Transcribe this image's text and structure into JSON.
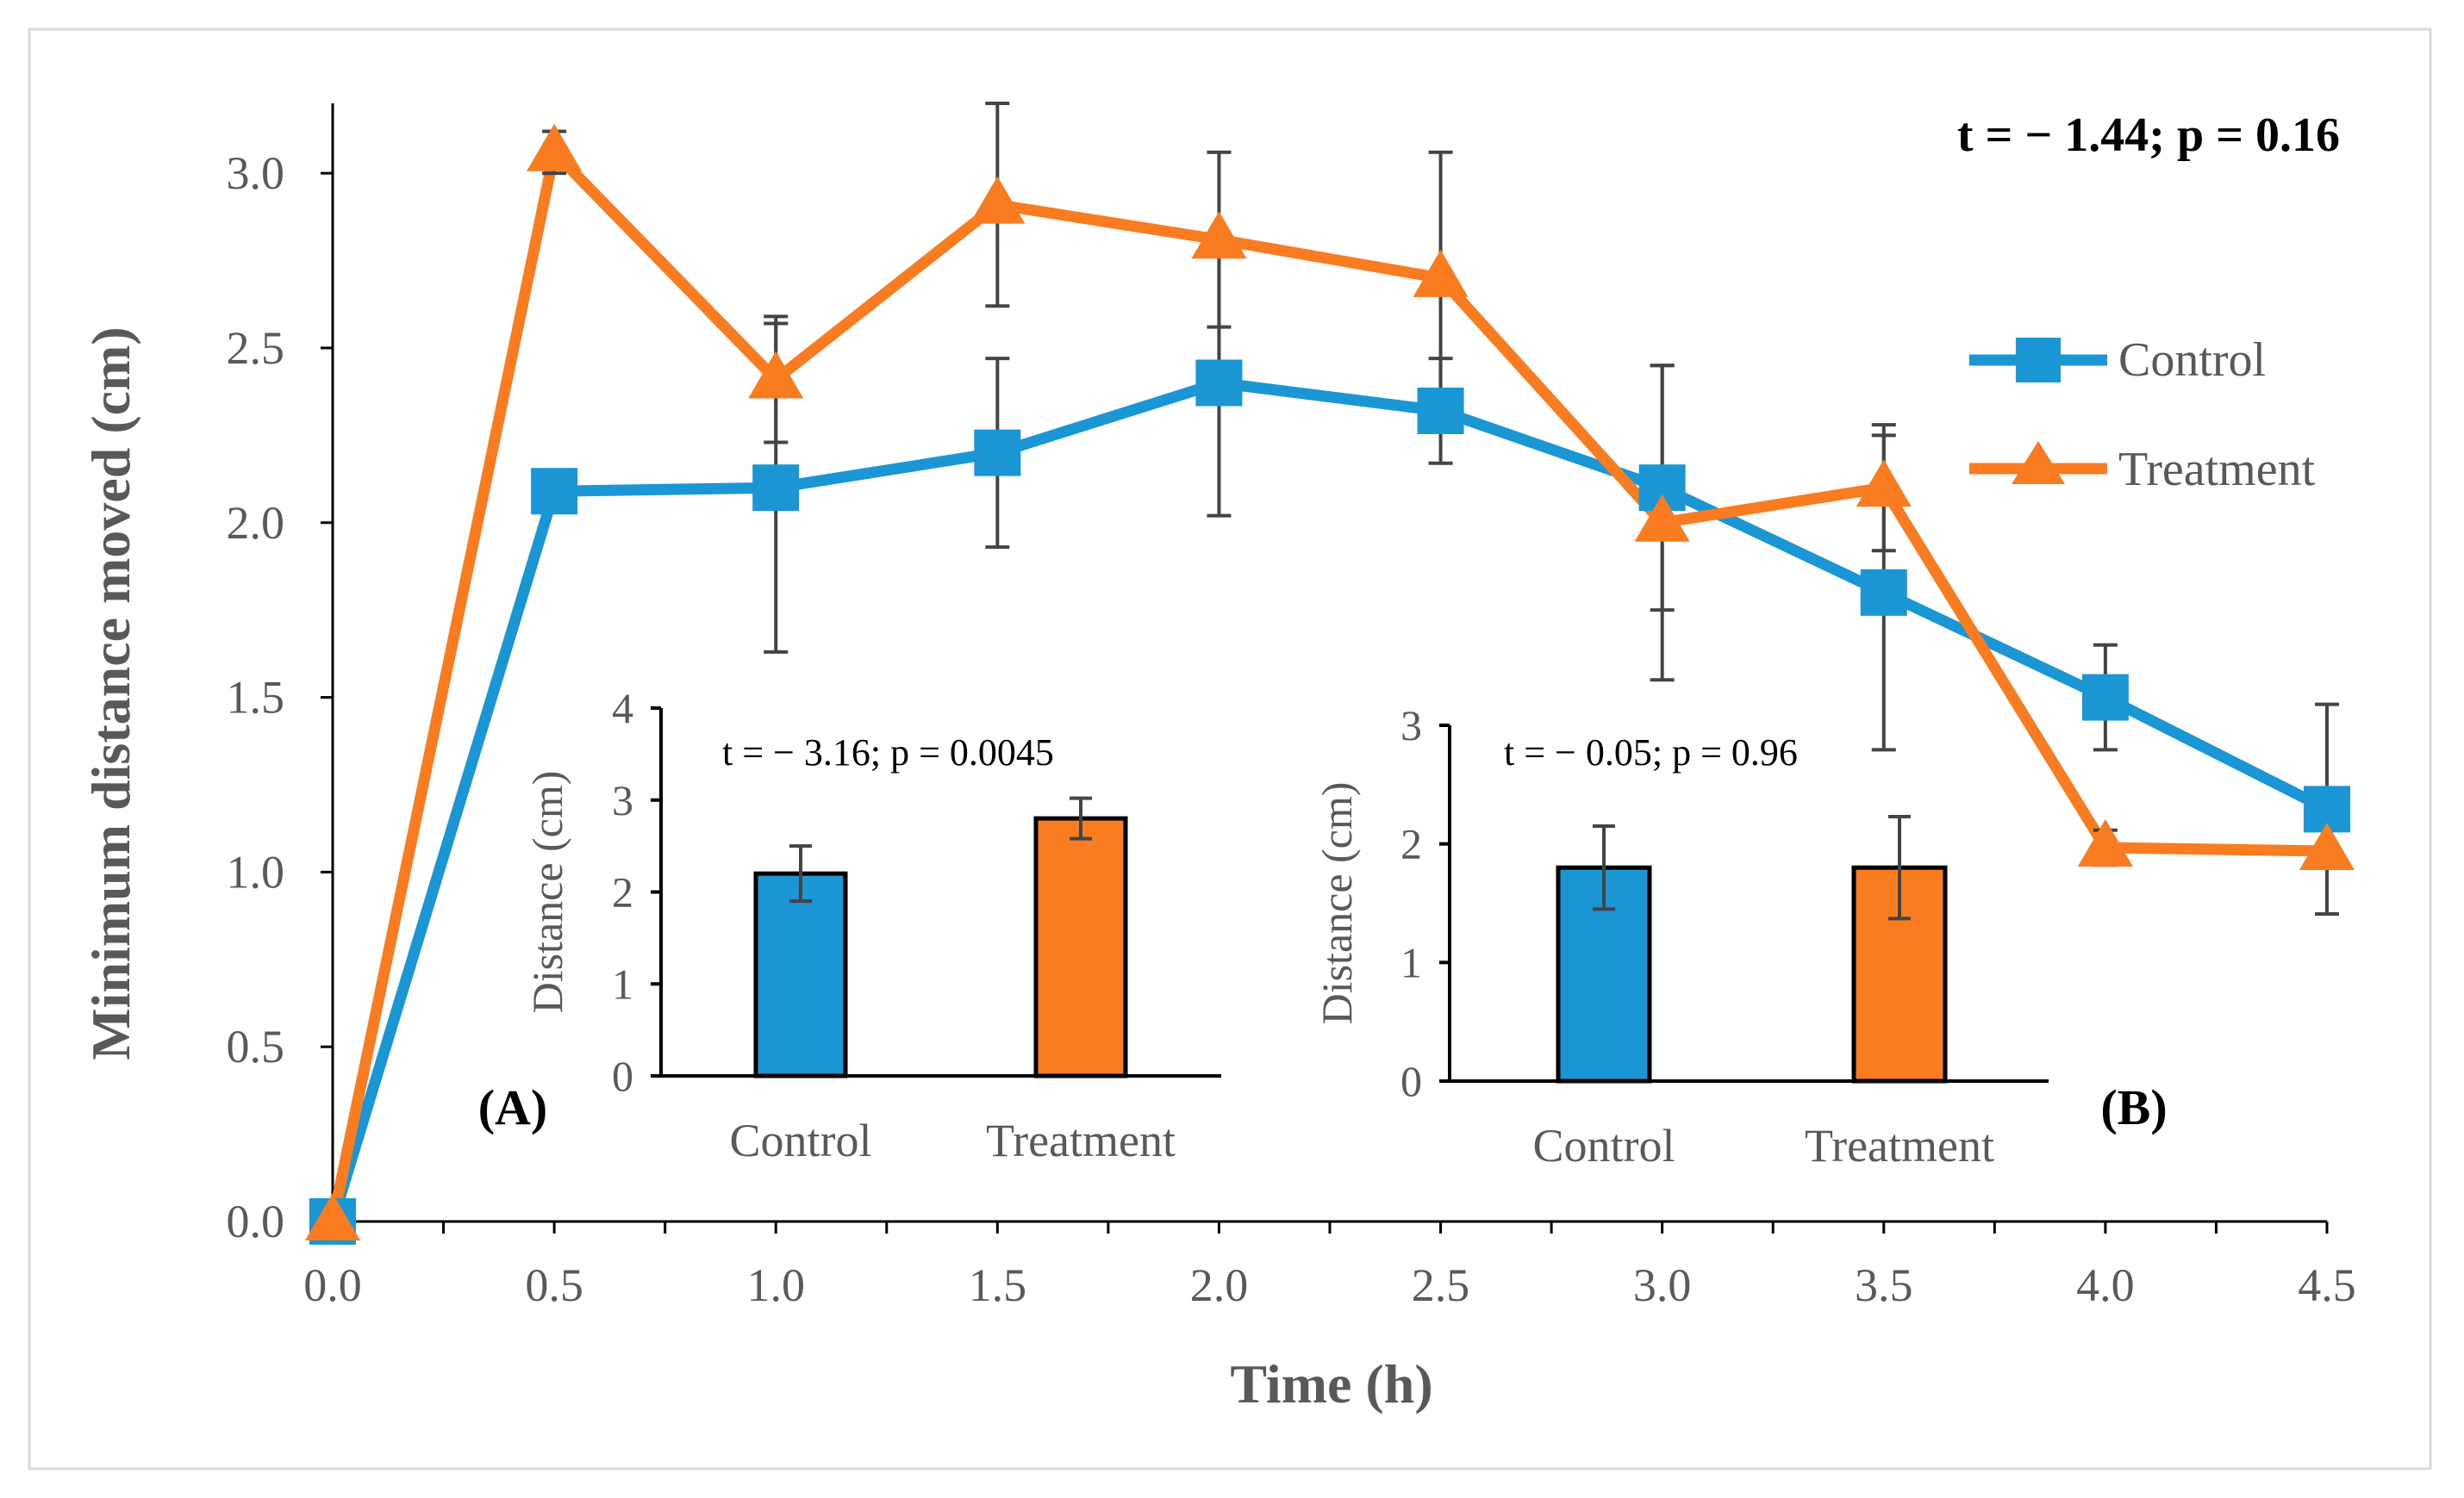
{
  "colors": {
    "control": "#1a96d4",
    "treatment": "#f97c20",
    "axis": "#000000",
    "tick_text": "#595959",
    "error_bar": "#444444",
    "frame": "#d9d9d9"
  },
  "chart_data": [
    {
      "id": "main",
      "type": "line",
      "title": "",
      "xlabel": "Time (h)",
      "ylabel": "Minimum distance moved (cm)",
      "x": [
        0.0,
        0.5,
        1.0,
        1.5,
        2.0,
        2.5,
        3.0,
        3.5,
        4.0,
        4.5
      ],
      "x_tick_labels": [
        "0.0",
        "0.5",
        "1.0",
        "1.5",
        "2.0",
        "2.5",
        "3.0",
        "3.5",
        "4.0",
        "4.5"
      ],
      "xlim": [
        0,
        4.5
      ],
      "ylim": [
        0,
        3.2
      ],
      "y_ticks": [
        0,
        0.5,
        1.0,
        1.5,
        2.0,
        2.5,
        3.0
      ],
      "y_tick_labels": [
        "0.0",
        "0.5",
        "1.0",
        "1.5",
        "2.0",
        "2.5",
        "3.0"
      ],
      "annotation": "t = − 1.44; p = 0.16",
      "legend_position": "right",
      "series": [
        {
          "name": "Control",
          "marker": "square",
          "values": [
            0.0,
            2.09,
            2.1,
            2.2,
            2.4,
            2.32,
            2.1,
            1.8,
            1.5,
            1.18
          ],
          "errors": [
            0.0,
            0.06,
            0.47,
            0.27,
            0.38,
            0.15,
            0.35,
            0.45,
            0.15,
            0.3
          ]
        },
        {
          "name": "Treatment",
          "marker": "triangle",
          "values": [
            0.0,
            3.06,
            2.41,
            2.91,
            2.81,
            2.7,
            2.0,
            2.1,
            1.07,
            1.06
          ],
          "errors": [
            0.0,
            0.06,
            0.18,
            0.29,
            0.25,
            0.36,
            0.45,
            0.18,
            0.05,
            0.0
          ]
        }
      ]
    },
    {
      "id": "inset-a",
      "type": "bar",
      "panel_label": "(A)",
      "annotation": "t = − 3.16; p = 0.0045",
      "categories": [
        "Control",
        "Treatment"
      ],
      "values": [
        2.2,
        2.8
      ],
      "errors": [
        0.3,
        0.22
      ],
      "ylabel": "Distance (cm)",
      "ylim": [
        0,
        4
      ],
      "y_ticks": [
        0,
        1,
        2,
        3,
        4
      ]
    },
    {
      "id": "inset-b",
      "type": "bar",
      "panel_label": "(B)",
      "annotation": "t = − 0.05; p = 0.96",
      "categories": [
        "Control",
        "Treatment"
      ],
      "values": [
        1.8,
        1.8
      ],
      "errors": [
        0.35,
        0.43
      ],
      "ylabel": "Distance (cm)",
      "ylim": [
        0,
        3
      ],
      "y_ticks": [
        0,
        1,
        2,
        3
      ]
    }
  ]
}
